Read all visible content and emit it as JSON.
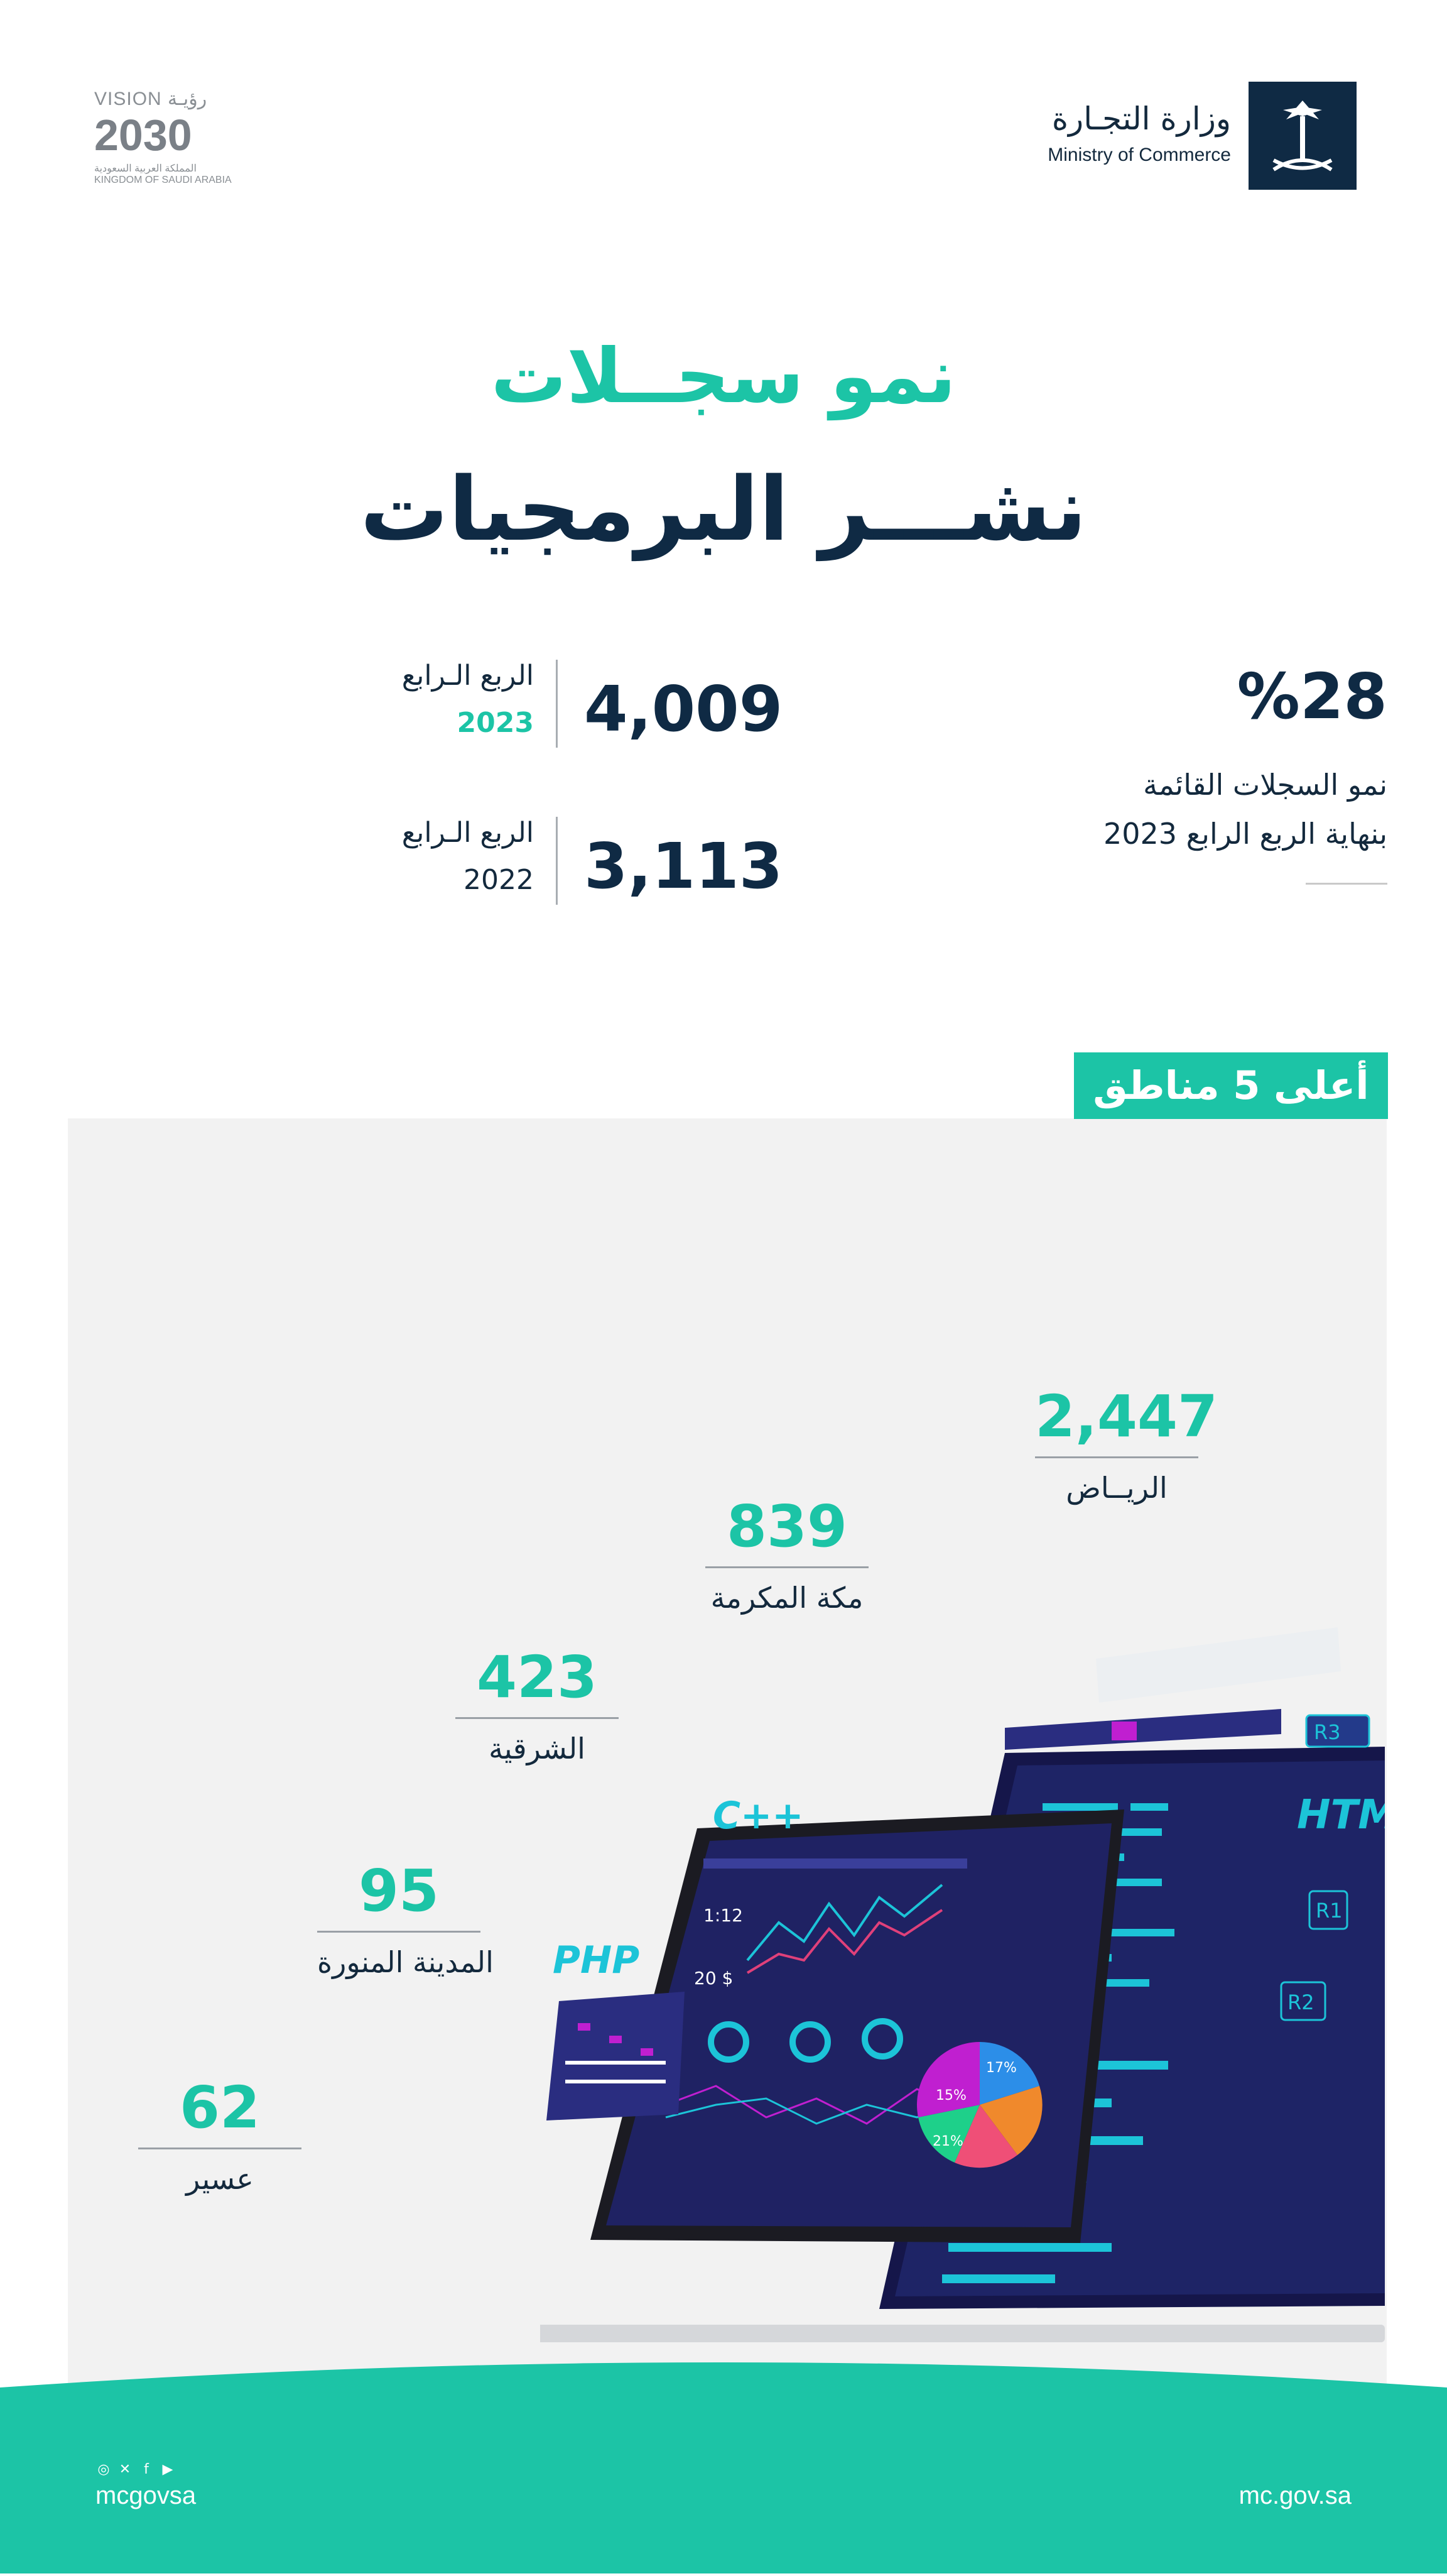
{
  "header": {
    "ministry_ar": "وزارة التجـارة",
    "ministry_en": "Ministry of Commerce",
    "vision_label": "VISION رؤيـة",
    "vision_year": "2030",
    "vision_sub_ar": "المملكة العربية السعودية",
    "vision_sub_en": "KINGDOM OF SAUDI ARABIA"
  },
  "title": {
    "line1": "نمو سجــلات",
    "line2": "نشـــر البرمجيات"
  },
  "growth": {
    "percent": "%28",
    "desc_line1": "نمو السجلات القائمة",
    "desc_line2": "بنهاية الربع الرابع 2023"
  },
  "stats": [
    {
      "value": "4,009",
      "quarter": "الربع الـرابع",
      "year": "2023"
    },
    {
      "value": "3,113",
      "quarter": "الربع الـرابع",
      "year": "2022"
    }
  ],
  "regions_title": "أعلى 5 مناطق",
  "regions": [
    {
      "name": "الريــاض",
      "value": "2,447"
    },
    {
      "name": "مكة المكرمة",
      "value": "839"
    },
    {
      "name": "الشرقية",
      "value": "423"
    },
    {
      "name": "المدينة المنورة",
      "value": "95"
    },
    {
      "name": "عسير",
      "value": "62"
    }
  ],
  "illustration": {
    "labels": [
      "C++",
      "PHP",
      "HTML",
      "R1",
      "R2",
      "R3"
    ],
    "pie_labels": [
      "17%",
      "15%",
      "21%"
    ],
    "screen_values": [
      "1:12",
      "20 $"
    ]
  },
  "footer": {
    "handle": "mcgovsa",
    "url": "mc.gov.sa",
    "icons": [
      "instagram-icon",
      "x-icon",
      "facebook-icon",
      "youtube-icon"
    ]
  },
  "colors": {
    "teal": "#1cc4a6",
    "navy": "#0f2a44",
    "panel": "#f2f2f2"
  }
}
